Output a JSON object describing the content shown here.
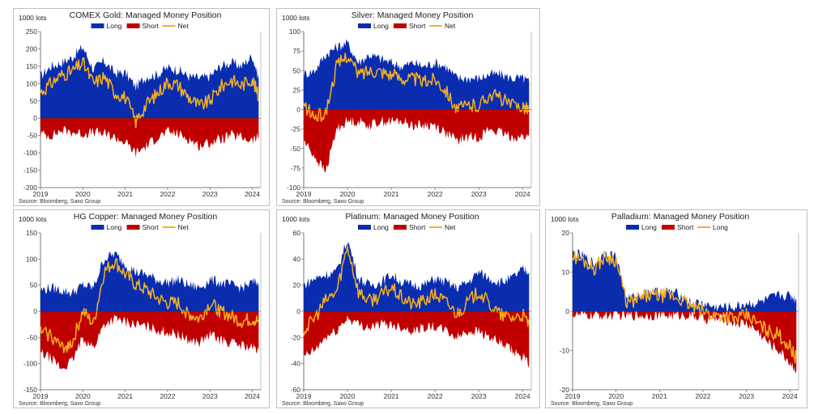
{
  "colors": {
    "long": "#0a2db0",
    "short": "#c00000",
    "net": "#f5b021"
  },
  "chart_data": [
    {
      "id": "gold",
      "type": "area",
      "title": "COMEX Gold: Managed Money Position",
      "unit_label": "1000 lots",
      "source": "Source: Bloomberg, Saxo Group",
      "legend": [
        "Long",
        "Short",
        "Net"
      ],
      "ylim": [
        -200,
        250
      ],
      "yticks": [
        250,
        200,
        150,
        100,
        50,
        0,
        -50,
        -100,
        -150,
        -200
      ],
      "xlim": [
        2019,
        2024.2
      ],
      "xticks": [
        "2019",
        "2020",
        "2021",
        "2022",
        "2023",
        "2024"
      ],
      "x": [
        2019,
        2019.25,
        2019.5,
        2019.75,
        2020,
        2020.25,
        2020.5,
        2020.75,
        2021,
        2021.25,
        2021.5,
        2021.75,
        2022,
        2022.25,
        2022.5,
        2022.75,
        2023,
        2023.25,
        2023.5,
        2023.75,
        2024,
        2024.15
      ],
      "series": [
        {
          "name": "Long",
          "values": [
            120,
            150,
            160,
            175,
            205,
            140,
            165,
            130,
            130,
            90,
            120,
            125,
            145,
            140,
            120,
            115,
            120,
            150,
            160,
            150,
            180,
            115
          ]
        },
        {
          "name": "Short",
          "values": [
            -45,
            -50,
            -35,
            -40,
            -45,
            -40,
            -45,
            -55,
            -70,
            -100,
            -80,
            -55,
            -40,
            -45,
            -60,
            -80,
            -70,
            -60,
            -50,
            -55,
            -65,
            -55
          ]
        },
        {
          "name": "Net",
          "values": [
            75,
            100,
            125,
            135,
            160,
            100,
            120,
            75,
            60,
            -10,
            40,
            70,
            105,
            95,
            60,
            35,
            50,
            90,
            110,
            95,
            115,
            60
          ]
        }
      ]
    },
    {
      "id": "silver",
      "type": "area",
      "title": "Silver: Managed Money Position",
      "unit_label": "1000 lots",
      "source": "Source: Bloomberg, Saxo Group",
      "legend": [
        "Long",
        "Short",
        "Net"
      ],
      "ylim": [
        -100,
        100
      ],
      "yticks": [
        100,
        75,
        50,
        25,
        0,
        -25,
        -50,
        -75,
        -100
      ],
      "xlim": [
        2019,
        2024.2
      ],
      "xticks": [
        "2019",
        "2020",
        "2021",
        "2022",
        "2023",
        "2024"
      ],
      "x": [
        2019,
        2019.25,
        2019.5,
        2019.75,
        2020,
        2020.25,
        2020.5,
        2020.75,
        2021,
        2021.25,
        2021.5,
        2021.75,
        2022,
        2022.25,
        2022.5,
        2022.75,
        2023,
        2023.25,
        2023.5,
        2023.75,
        2024,
        2024.15
      ],
      "series": [
        {
          "name": "Long",
          "values": [
            45,
            50,
            70,
            80,
            85,
            60,
            70,
            65,
            60,
            55,
            60,
            55,
            60,
            55,
            40,
            40,
            40,
            45,
            45,
            40,
            40,
            35
          ]
        },
        {
          "name": "Short",
          "values": [
            -40,
            -60,
            -80,
            -25,
            -15,
            -15,
            -20,
            -15,
            -15,
            -15,
            -20,
            -20,
            -20,
            -30,
            -40,
            -35,
            -35,
            -25,
            -30,
            -35,
            -35,
            -35
          ]
        },
        {
          "name": "Net",
          "values": [
            5,
            -10,
            -5,
            55,
            70,
            45,
            50,
            50,
            45,
            40,
            40,
            35,
            40,
            25,
            0,
            5,
            5,
            20,
            15,
            5,
            5,
            0
          ]
        }
      ]
    },
    {
      "id": "copper",
      "type": "area",
      "title": "HG Copper: Managed Money Position",
      "unit_label": "1000 lots",
      "source": "Source: Bloomberg, Saxo Group",
      "legend": [
        "Long",
        "Short",
        "Net"
      ],
      "ylim": [
        -150,
        150
      ],
      "yticks": [
        150,
        100,
        50,
        0,
        -50,
        -100,
        -150
      ],
      "xlim": [
        2019,
        2024.2
      ],
      "xticks": [
        "2019",
        "2020",
        "2021",
        "2022",
        "2023",
        "2024"
      ],
      "x": [
        2019,
        2019.25,
        2019.5,
        2019.75,
        2020,
        2020.25,
        2020.5,
        2020.75,
        2021,
        2021.25,
        2021.5,
        2021.75,
        2022,
        2022.25,
        2022.5,
        2022.75,
        2023,
        2023.25,
        2023.5,
        2023.75,
        2024,
        2024.15
      ],
      "series": [
        {
          "name": "Long",
          "values": [
            40,
            45,
            40,
            35,
            50,
            45,
            100,
            110,
            90,
            75,
            70,
            60,
            55,
            60,
            50,
            45,
            60,
            55,
            50,
            45,
            55,
            55
          ]
        },
        {
          "name": "Short",
          "values": [
            -80,
            -90,
            -110,
            -95,
            -50,
            -70,
            -25,
            -15,
            -20,
            -25,
            -30,
            -35,
            -40,
            -45,
            -55,
            -60,
            -45,
            -55,
            -60,
            -65,
            -70,
            -75
          ]
        },
        {
          "name": "Net",
          "values": [
            -40,
            -45,
            -70,
            -60,
            0,
            -25,
            75,
            95,
            70,
            50,
            40,
            25,
            15,
            15,
            -5,
            -15,
            15,
            0,
            -10,
            -20,
            -15,
            -20
          ]
        }
      ]
    },
    {
      "id": "platinum",
      "type": "area",
      "title": "Platinum: Managed Money Position",
      "unit_label": "1000 lots",
      "source": "Source: Bloomberg, Saxo Group",
      "legend": [
        "Long",
        "Short",
        "Net"
      ],
      "ylim": [
        -60,
        60
      ],
      "yticks": [
        60,
        40,
        20,
        0,
        -20,
        -40,
        -60
      ],
      "xlim": [
        2019,
        2024.2
      ],
      "xticks": [
        "2019",
        "2020",
        "2021",
        "2022",
        "2023",
        "2024"
      ],
      "x": [
        2019,
        2019.25,
        2019.5,
        2019.75,
        2020,
        2020.25,
        2020.5,
        2020.75,
        2021,
        2021.25,
        2021.5,
        2021.75,
        2022,
        2022.25,
        2022.5,
        2022.75,
        2023,
        2023.25,
        2023.5,
        2023.75,
        2024,
        2024.15
      ],
      "series": [
        {
          "name": "Long",
          "values": [
            20,
            25,
            28,
            30,
            55,
            25,
            20,
            22,
            28,
            22,
            20,
            20,
            25,
            22,
            18,
            22,
            30,
            25,
            22,
            25,
            32,
            30
          ]
        },
        {
          "name": "Short",
          "values": [
            -35,
            -30,
            -20,
            -15,
            -5,
            -10,
            -12,
            -10,
            -10,
            -12,
            -15,
            -12,
            -12,
            -15,
            -20,
            -15,
            -15,
            -20,
            -25,
            -30,
            -35,
            -40
          ]
        },
        {
          "name": "Net",
          "values": [
            -15,
            -5,
            8,
            15,
            50,
            15,
            8,
            12,
            18,
            10,
            5,
            8,
            13,
            7,
            -2,
            7,
            15,
            5,
            -3,
            -5,
            -3,
            -10
          ]
        }
      ]
    },
    {
      "id": "palladium",
      "type": "area",
      "title": "Palladium: Managed Money Position",
      "unit_label": "1000 lots",
      "source": "Source: Bloomberg, Saxo Group",
      "legend": [
        "Long",
        "Short",
        "Long"
      ],
      "ylim": [
        -20,
        20
      ],
      "yticks": [
        20,
        10,
        0,
        -10,
        -20
      ],
      "xlim": [
        2019,
        2024.2
      ],
      "xticks": [
        "2019",
        "2020",
        "2021",
        "2022",
        "2023",
        "2024"
      ],
      "x": [
        2019,
        2019.25,
        2019.5,
        2019.75,
        2020,
        2020.25,
        2020.5,
        2020.75,
        2021,
        2021.25,
        2021.5,
        2021.75,
        2022,
        2022.25,
        2022.5,
        2022.75,
        2023,
        2023.25,
        2023.5,
        2023.75,
        2024,
        2024.15
      ],
      "series": [
        {
          "name": "Long",
          "values": [
            15,
            14,
            12,
            15,
            14,
            3,
            4,
            5,
            5,
            5,
            4,
            2,
            2,
            1,
            1,
            1,
            2,
            2,
            3,
            4,
            4,
            3
          ]
        },
        {
          "name": "Short",
          "values": [
            -1,
            -1,
            -1,
            -1,
            -1,
            -1,
            -1,
            -1,
            -1,
            -1,
            -1,
            -1,
            -2,
            -2,
            -2,
            -3,
            -3,
            -5,
            -8,
            -10,
            -13,
            -15
          ]
        },
        {
          "name": "Long",
          "values": [
            14,
            13,
            11,
            14,
            13,
            2,
            3,
            4,
            4,
            4,
            3,
            1,
            0,
            -1,
            -1,
            -2,
            -1,
            -3,
            -5,
            -6,
            -9,
            -12
          ]
        }
      ]
    }
  ]
}
